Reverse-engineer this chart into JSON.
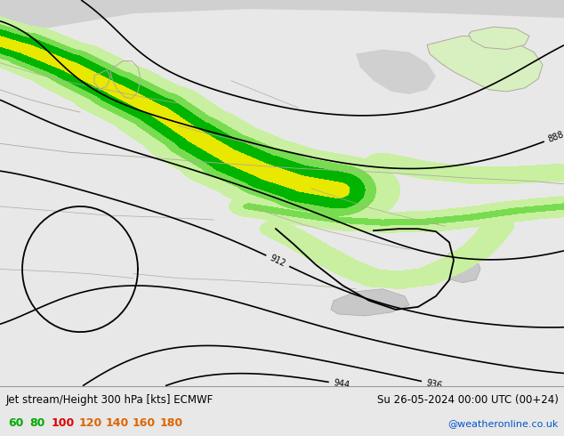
{
  "title_left": "Jet stream/Height 300 hPa [kts] ECMWF",
  "title_right": "Su 26-05-2024 00:00 UTC (00+24)",
  "credit": "@weatheronline.co.uk",
  "legend_values": [
    "60",
    "80",
    "100",
    "120",
    "140",
    "160",
    "180"
  ],
  "legend_text_colors": [
    "#00aa00",
    "#00aa00",
    "#dd0000",
    "#dd6600",
    "#dd6600",
    "#dd6600",
    "#dd6600"
  ],
  "fill_levels": [
    60,
    80,
    100,
    120,
    140,
    160,
    180,
    220
  ],
  "fill_colors": [
    "#c8f0a0",
    "#78dc50",
    "#00b400",
    "#e8e800",
    "#e89600",
    "#d04800",
    "#c00000"
  ],
  "land_color": "#d8f0c0",
  "sea_color": "#d0d0d0",
  "contour_color": "#000000",
  "border_color": "#b0a8a0",
  "bottom_bg": "#ffffff",
  "map_bg_color": "#d8d8d8",
  "fig_width": 6.34,
  "fig_height": 4.9,
  "dpi": 100
}
